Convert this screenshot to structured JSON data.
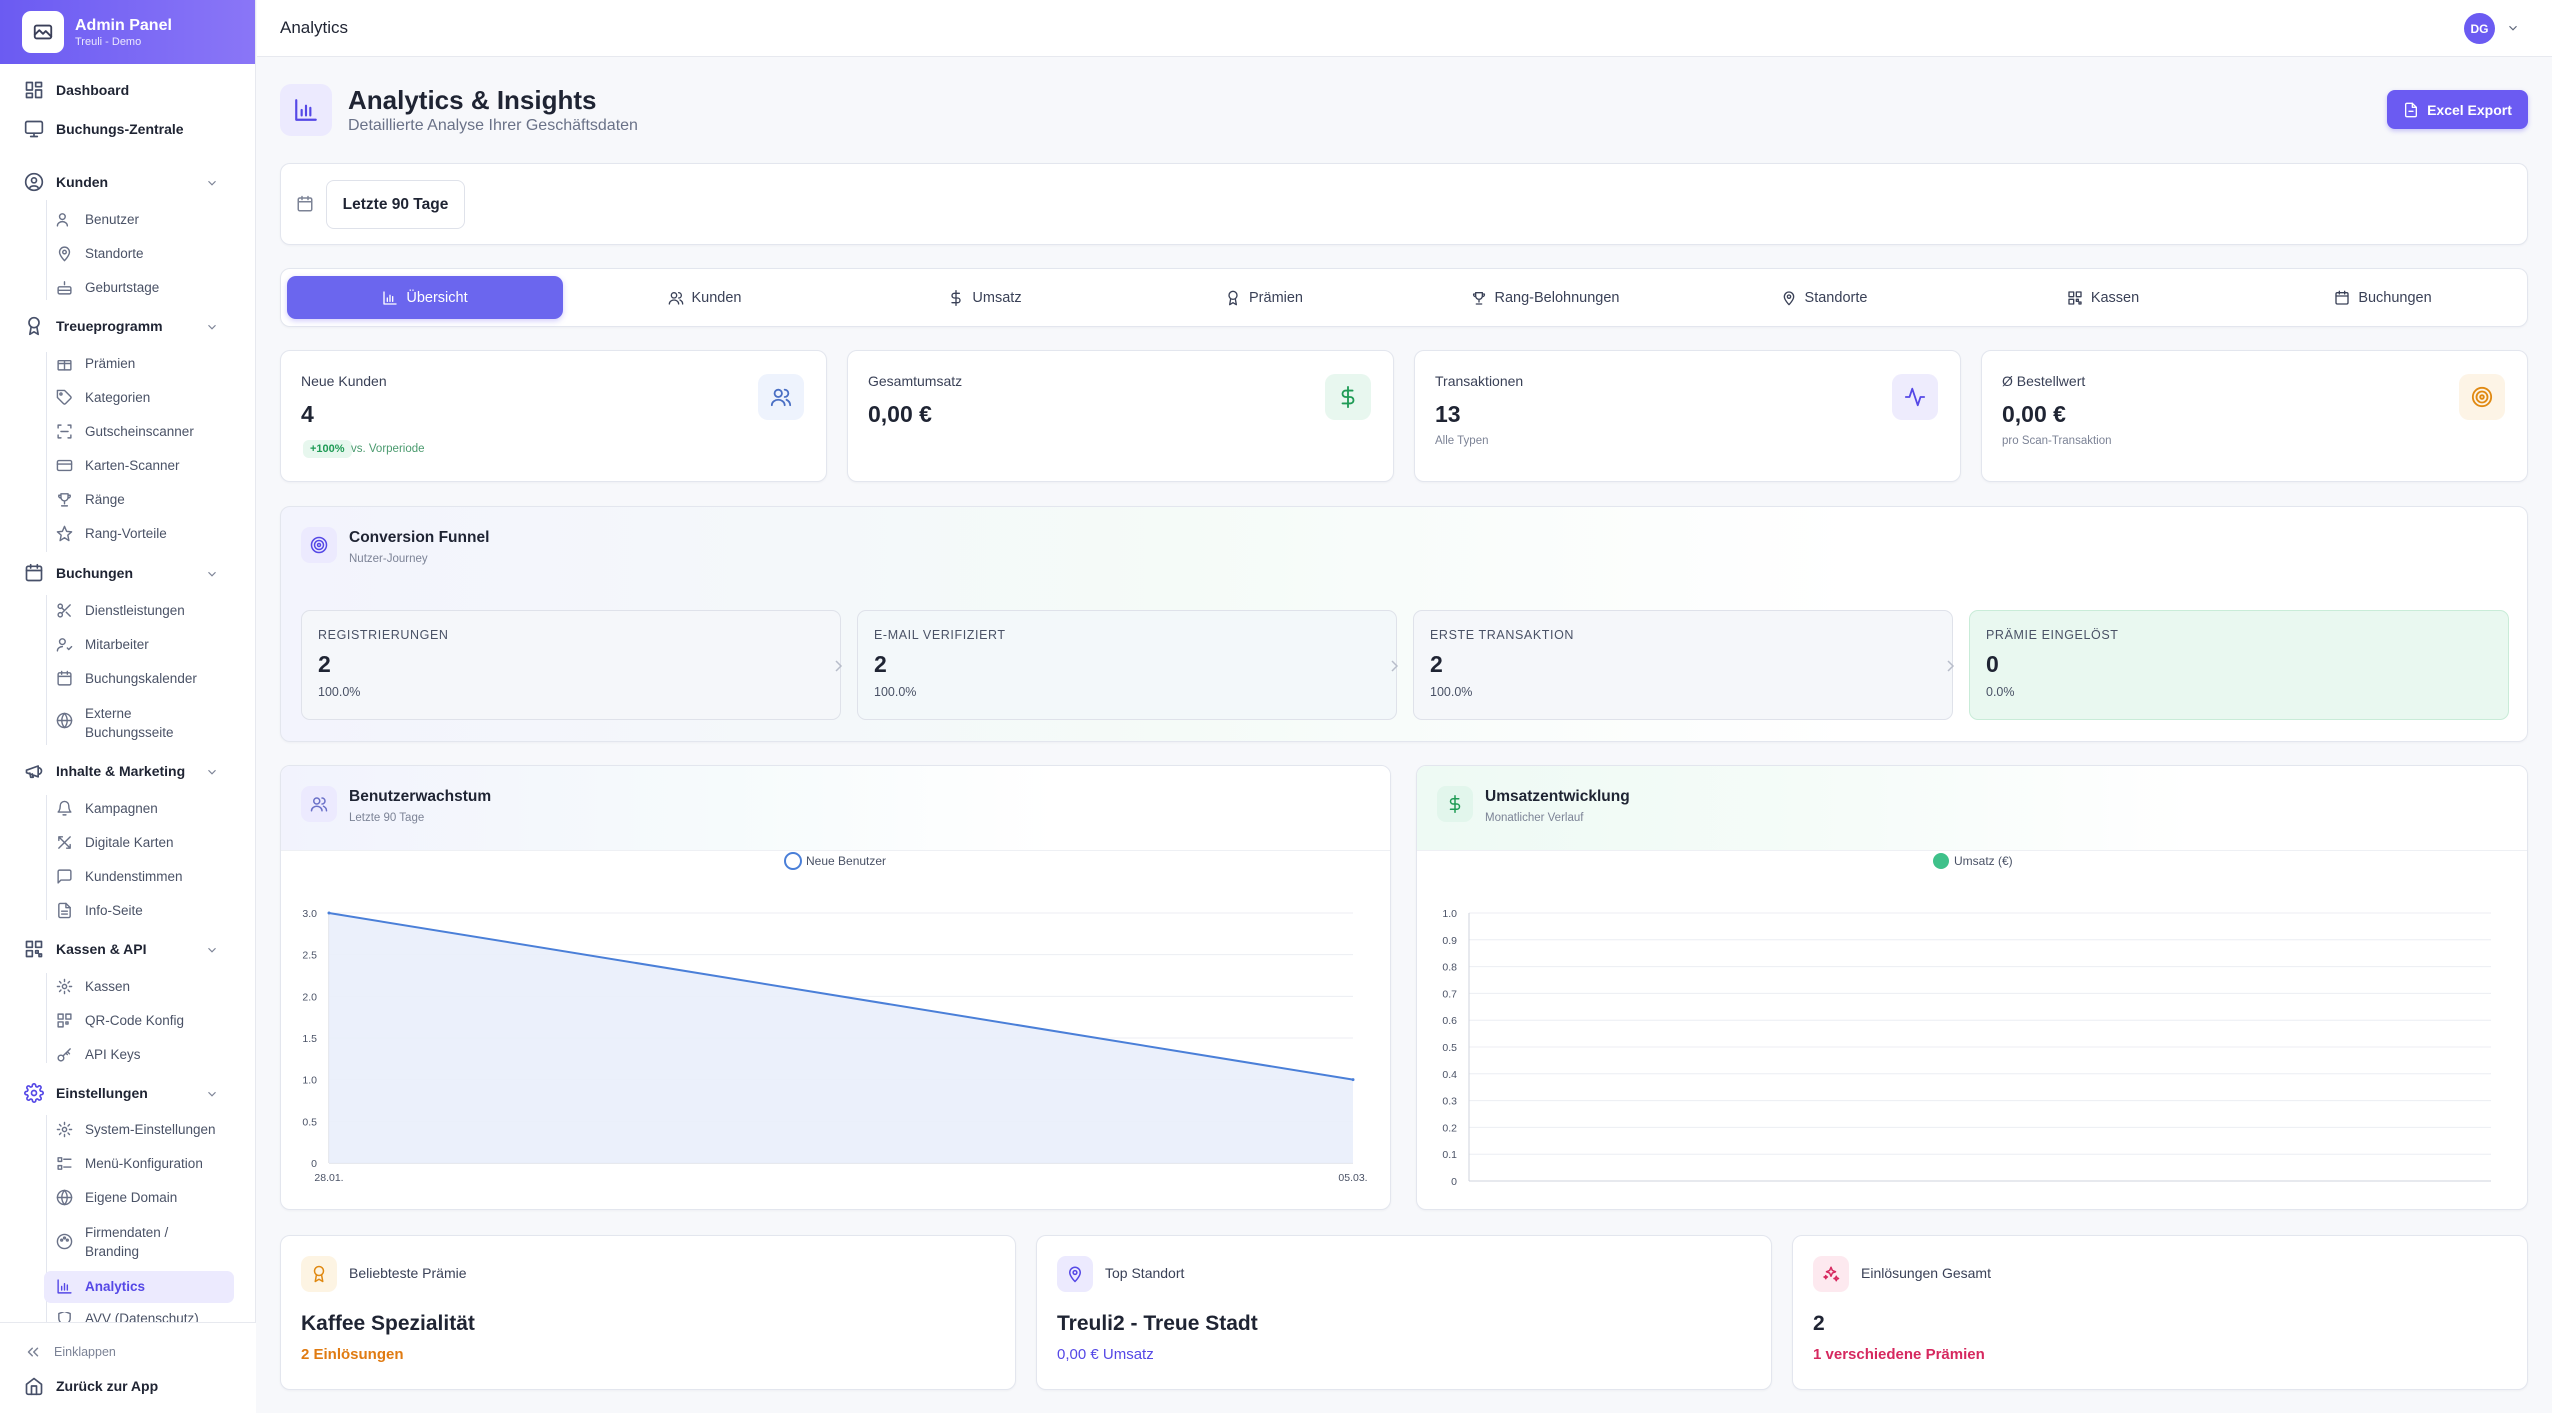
{
  "brand": {
    "title": "Admin Panel",
    "subtitle": "Treuli - Demo"
  },
  "nav": {
    "dashboard": "Dashboard",
    "buchungs_zentrale": "Buchungs-Zentrale",
    "kunden": "Kunden",
    "benutzer": "Benutzer",
    "standorte": "Standorte",
    "geburtstage": "Geburtstage",
    "treueprogramm": "Treueprogramm",
    "praemien": "Prämien",
    "kategorien": "Kategorien",
    "gutscheinscanner": "Gutscheinscanner",
    "karten_scanner": "Karten-Scanner",
    "raenge": "Ränge",
    "rang_vorteile": "Rang-Vorteile",
    "buchungen": "Buchungen",
    "dienstleistungen": "Dienstleistungen",
    "mitarbeiter": "Mitarbeiter",
    "buchungskalender": "Buchungskalender",
    "externe_1": "Externe",
    "externe_2": "Buchungsseite",
    "inhalte": "Inhalte & Marketing",
    "kampagnen": "Kampagnen",
    "digitale_karten": "Digitale Karten",
    "kundenstimmen": "Kundenstimmen",
    "info_seite": "Info-Seite",
    "kassen_api": "Kassen & API",
    "kassen": "Kassen",
    "qr_code": "QR-Code Konfig",
    "api_keys": "API Keys",
    "einstellungen": "Einstellungen",
    "system": "System-Einstellungen",
    "menue": "Menü-Konfiguration",
    "domain": "Eigene Domain",
    "firmendaten_1": "Firmendaten /",
    "firmendaten_2": "Branding",
    "analytics": "Analytics",
    "avv": "AVV (Datenschutz)",
    "einklappen": "Einklappen",
    "zurueck": "Zurück zur App"
  },
  "topbar": {
    "title": "Analytics",
    "avatar": "DG"
  },
  "header": {
    "title": "Analytics & Insights",
    "subtitle": "Detaillierte Analyse Ihrer Geschäftsdaten",
    "export": "Excel Export"
  },
  "filter": {
    "range": "Letzte 90 Tage"
  },
  "tabs": [
    "Übersicht",
    "Kunden",
    "Umsatz",
    "Prämien",
    "Rang-Belohnungen",
    "Standorte",
    "Kassen",
    "Buchungen"
  ],
  "kpis": {
    "neue_kunden": {
      "label": "Neue Kunden",
      "value": "4",
      "badge": "+100%",
      "badge_text": "vs. Vorperiode"
    },
    "umsatz": {
      "label": "Gesamtumsatz",
      "value": "0,00 €"
    },
    "transaktionen": {
      "label": "Transaktionen",
      "value": "13",
      "note": "Alle Typen"
    },
    "bestellwert": {
      "label": "Ø Bestellwert",
      "value": "0,00 €",
      "note": "pro Scan-Transaktion"
    }
  },
  "funnel": {
    "title": "Conversion Funnel",
    "subtitle": "Nutzer-Journey",
    "steps": [
      {
        "label": "REGISTRIERUNGEN",
        "value": "2",
        "pct": "100.0%"
      },
      {
        "label": "E-MAIL VERIFIZIERT",
        "value": "2",
        "pct": "100.0%"
      },
      {
        "label": "ERSTE TRANSAKTION",
        "value": "2",
        "pct": "100.0%"
      },
      {
        "label": "PRÄMIE EINGELÖST",
        "value": "0",
        "pct": "0.0%"
      }
    ]
  },
  "growth": {
    "title": "Benutzerwachstum",
    "subtitle": "Letzte 90 Tage"
  },
  "revenue": {
    "title": "Umsatzentwicklung",
    "subtitle": "Monatlicher Verlauf"
  },
  "chart_data": [
    {
      "type": "area",
      "legend": "Neue Benutzer",
      "x": [
        "28.01.",
        "05.03."
      ],
      "series": [
        {
          "name": "Neue Benutzer",
          "values": [
            3.0,
            1.0
          ]
        }
      ],
      "yticks": [
        "3.0",
        "2.5",
        "2.0",
        "1.5",
        "1.0",
        "0.5",
        "0"
      ],
      "ylim": [
        0,
        3
      ],
      "grid": true,
      "legend_position": "top-center",
      "colors": {
        "line": "#4a7fd8",
        "fill": "#e9eefb"
      }
    },
    {
      "type": "bar",
      "legend": "Umsatz (€)",
      "x": [],
      "series": [
        {
          "name": "Umsatz (€)",
          "values": []
        }
      ],
      "yticks": [
        "1.0",
        "0.9",
        "0.8",
        "0.7",
        "0.6",
        "0.5",
        "0.4",
        "0.3",
        "0.2",
        "0.1",
        "0"
      ],
      "ylim": [
        0,
        1
      ],
      "grid": true,
      "legend_position": "top-center",
      "colors": {
        "bar": "#3fc18a"
      }
    }
  ],
  "bottom": {
    "praemie": {
      "label": "Beliebteste Prämie",
      "value": "Kaffee Spezialität",
      "sub": "2 Einlösungen"
    },
    "standort": {
      "label": "Top Standort",
      "value": "Treuli2 - Treue Stadt",
      "sub": "0,00 € Umsatz"
    },
    "einloesungen": {
      "label": "Einlösungen Gesamt",
      "value": "2",
      "sub": "1 verschiedene Prämien"
    }
  },
  "colors": {
    "accent": "#6b5bf2",
    "success": "#1f9b55",
    "orange": "#e07b12",
    "pink": "#d6285f"
  }
}
